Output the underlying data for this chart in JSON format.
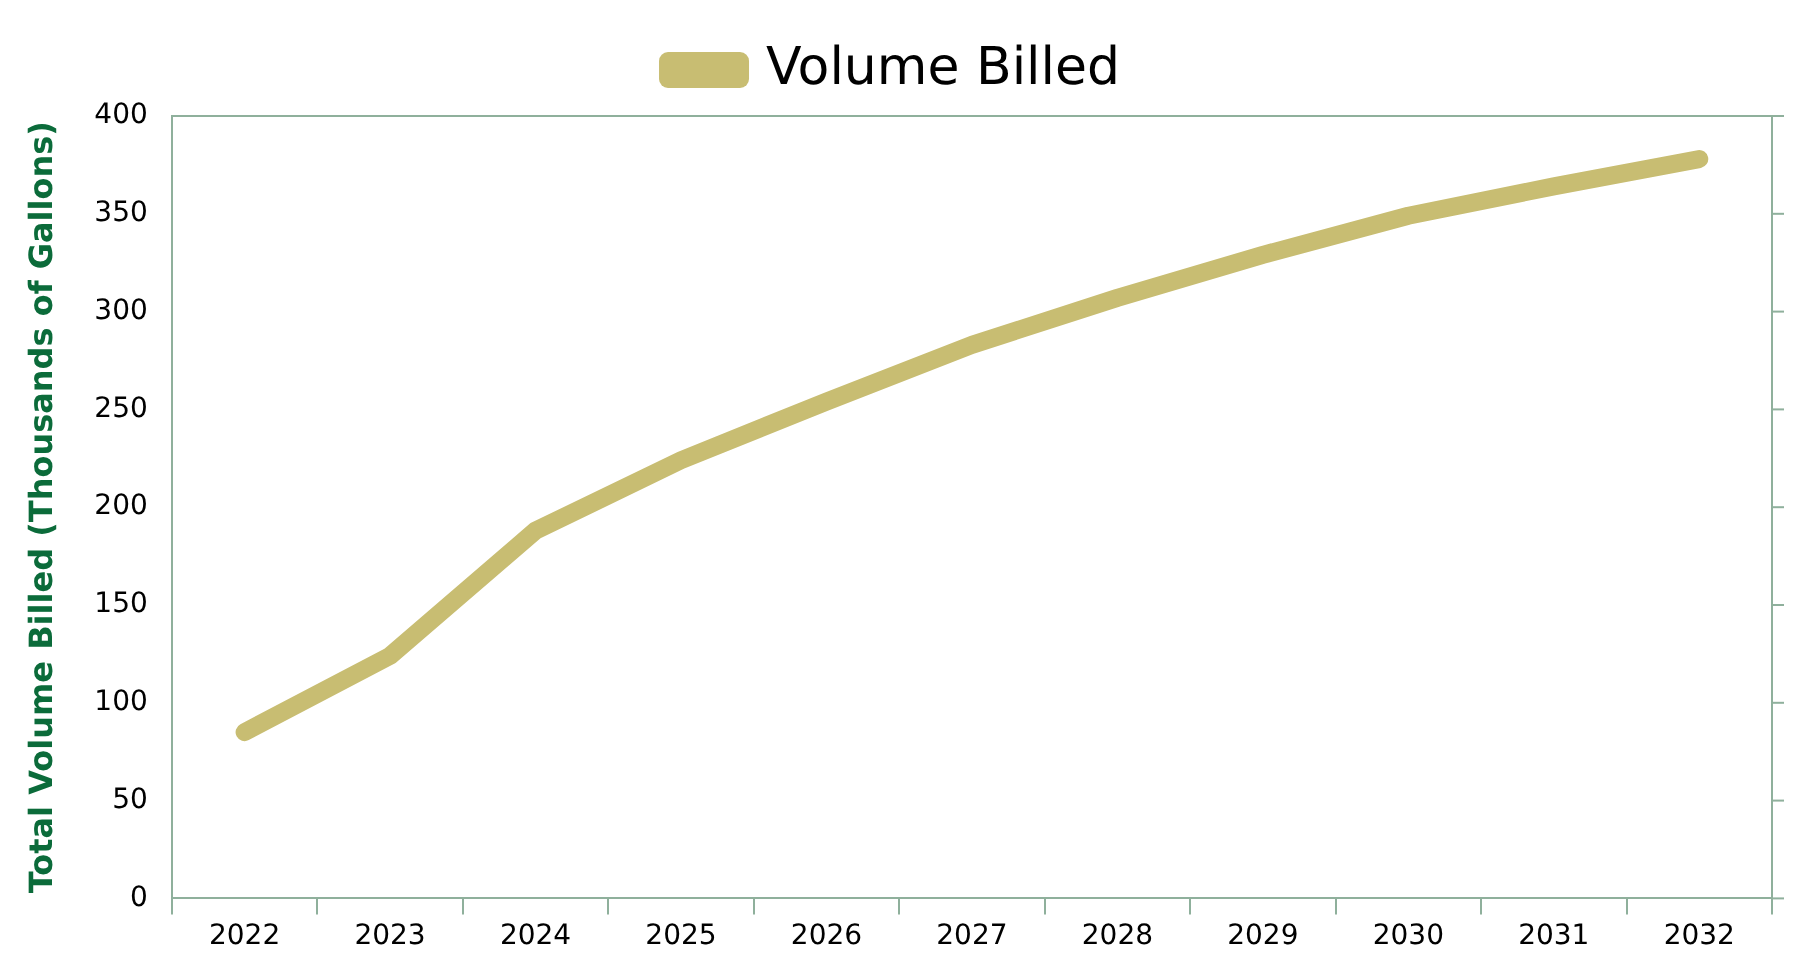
{
  "chart_data": {
    "type": "line",
    "ylabel": "Total Volume Billed (Thousands of Gallons)",
    "categories": [
      "2022",
      "2023",
      "2024",
      "2025",
      "2026",
      "2027",
      "2028",
      "2029",
      "2030",
      "2031",
      "2032"
    ],
    "series": [
      {
        "name": "Volume Billed",
        "color": "#c8bd72",
        "values": [
          85,
          124,
          188,
          224,
          254,
          283,
          307,
          329,
          349,
          364,
          378
        ]
      }
    ],
    "ylim": [
      0,
      400
    ],
    "yticks": [
      0,
      50,
      100,
      150,
      200,
      250,
      300,
      350,
      400
    ],
    "grid": false,
    "legend": "top",
    "marker": "none",
    "line_style": "solid"
  }
}
